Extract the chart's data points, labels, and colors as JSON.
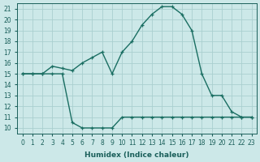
{
  "xlabel": "Humidex (Indice chaleur)",
  "ylabel": "",
  "bg_color": "#cce8e8",
  "line_color": "#1a6e62",
  "xlim": [
    -0.5,
    23.5
  ],
  "ylim": [
    9.5,
    21.5
  ],
  "xticks": [
    0,
    1,
    2,
    3,
    4,
    5,
    6,
    7,
    8,
    9,
    10,
    11,
    12,
    13,
    14,
    15,
    16,
    17,
    18,
    19,
    20,
    21,
    22,
    23
  ],
  "yticks": [
    10,
    11,
    12,
    13,
    14,
    15,
    16,
    17,
    18,
    19,
    20,
    21
  ],
  "line1_x": [
    0,
    1,
    2,
    3,
    4,
    5,
    6,
    7,
    8,
    9,
    10,
    11,
    12,
    13,
    14,
    15,
    16,
    17,
    18,
    19,
    20,
    21,
    22,
    23
  ],
  "line1_y": [
    15,
    15,
    15,
    15.7,
    15.5,
    15.3,
    16.0,
    16.5,
    17.0,
    15.0,
    17.0,
    18.0,
    19.5,
    20.5,
    21.2,
    21.2,
    20.5,
    19.0,
    15.0,
    13.0,
    13.0,
    11.5,
    11.0,
    11.0
  ],
  "line2_x": [
    0,
    1,
    2,
    3,
    4,
    5,
    6,
    7,
    8,
    9,
    10,
    11,
    12,
    13,
    14,
    15,
    16,
    17,
    18,
    19,
    20,
    21,
    22,
    23
  ],
  "line2_y": [
    15,
    15,
    15,
    15.0,
    15.0,
    10.5,
    10.0,
    10.0,
    10.0,
    10.0,
    11.0,
    11.0,
    11.0,
    11.0,
    11.0,
    11.0,
    11.0,
    11.0,
    11.0,
    11.0,
    11.0,
    11.0,
    11.0,
    11.0
  ],
  "grid_color": "#aacfcf",
  "font_color": "#1a5f5a",
  "tick_fontsize": 5.5,
  "xlabel_fontsize": 6.5
}
